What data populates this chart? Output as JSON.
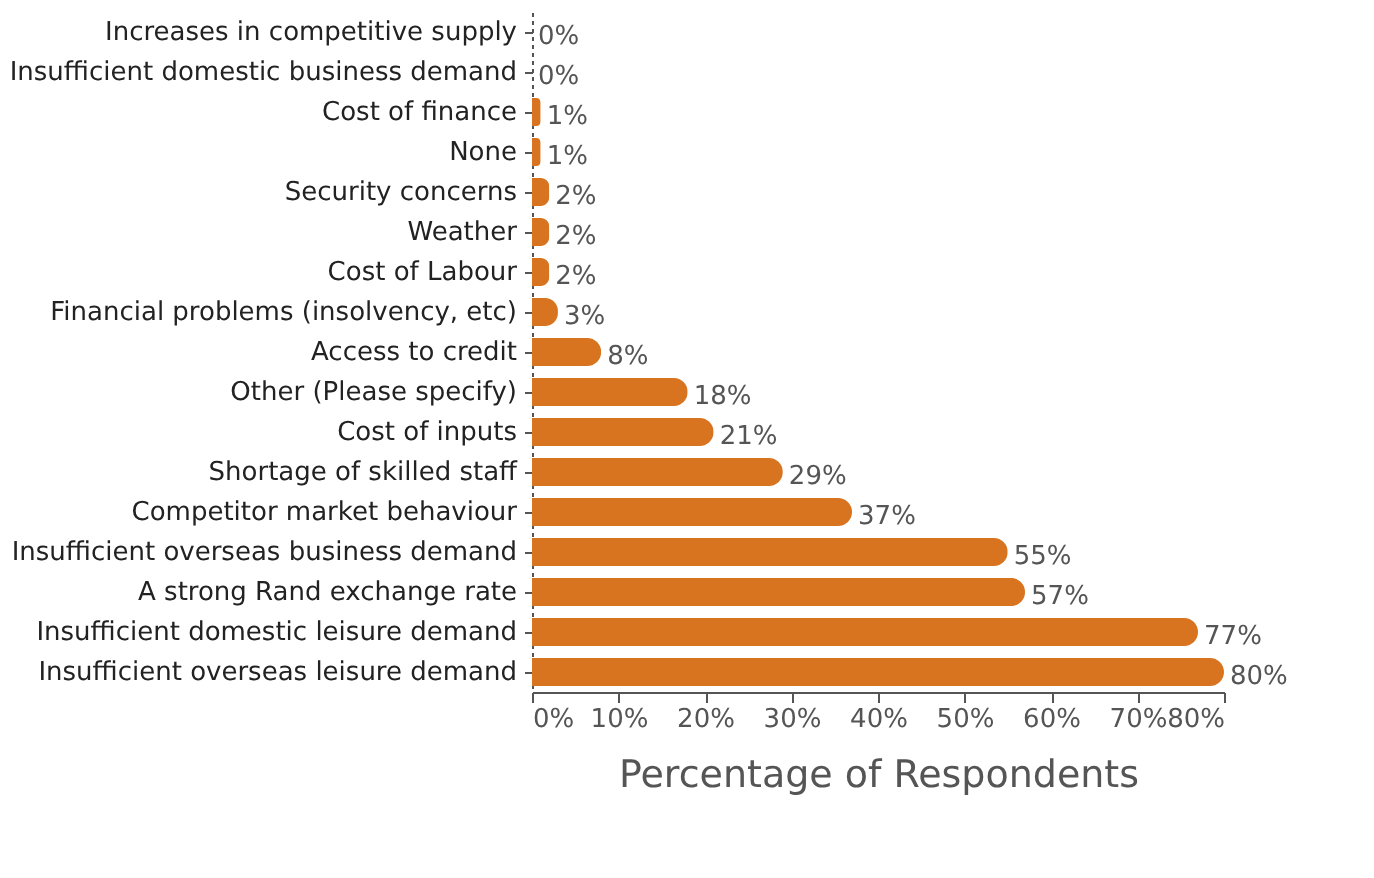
{
  "chart_data": {
    "type": "bar",
    "orientation": "horizontal",
    "xlabel": "Percentage of Respondents",
    "categories": [
      "Increases in competitive supply",
      "Insufficient domestic business demand",
      "Cost of finance",
      "None",
      "Security concerns",
      "Weather",
      "Cost of Labour",
      "Financial problems (insolvency, etc)",
      "Access to credit",
      "Other (Please specify)",
      "Cost of inputs",
      "Shortage of skilled staff",
      "Competitor market behaviour",
      "Insufficient overseas business demand",
      "A strong Rand exchange rate",
      "Insufficient domestic leisure demand",
      "Insufficient overseas leisure demand"
    ],
    "values": [
      0,
      0,
      1,
      1,
      2,
      2,
      2,
      3,
      8,
      18,
      21,
      29,
      37,
      55,
      57,
      77,
      80
    ],
    "value_labels": [
      "0%",
      "0%",
      "1%",
      "1%",
      "2%",
      "2%",
      "2%",
      "3%",
      "8%",
      "18%",
      "21%",
      "29%",
      "37%",
      "55%",
      "57%",
      "77%",
      "80%"
    ],
    "color": "#d8731f",
    "xlim": [
      0,
      80
    ],
    "xticks": [
      {
        "value": 0,
        "label": "0%"
      },
      {
        "value": 10,
        "label": "10%"
      },
      {
        "value": 20,
        "label": "20%"
      },
      {
        "value": 30,
        "label": "30%"
      },
      {
        "value": 40,
        "label": "40%"
      },
      {
        "value": 50,
        "label": "50%"
      },
      {
        "value": 60,
        "label": "60%"
      },
      {
        "value": 70,
        "label": "70%"
      },
      {
        "value": 80,
        "label": "80%"
      }
    ],
    "grid": false
  }
}
